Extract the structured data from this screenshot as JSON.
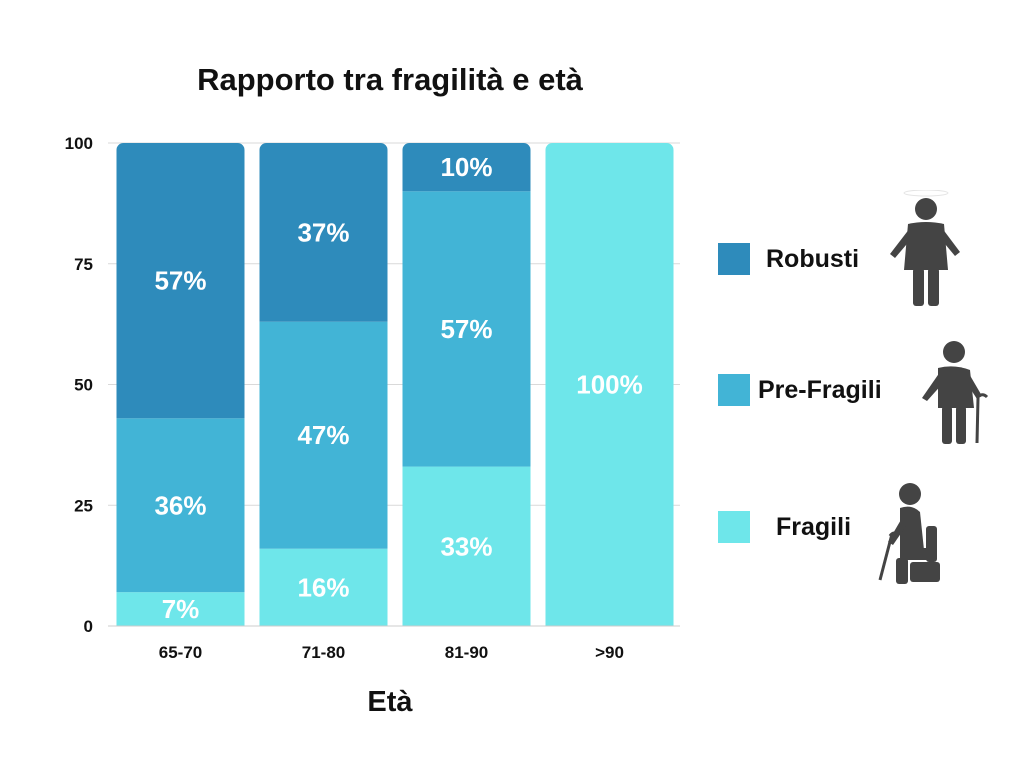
{
  "chart_data": {
    "type": "bar",
    "stacked": true,
    "title": "Rapporto tra fragilità e età",
    "xlabel": "Età",
    "ylabel": "",
    "categories": [
      "65-70",
      "71-80",
      "81-90",
      ">90"
    ],
    "ylim": [
      0,
      100
    ],
    "yticks": [
      "0",
      "25",
      "50",
      "75",
      "100"
    ],
    "grid": true,
    "legend_position": "right",
    "series": [
      {
        "name": "Fragili",
        "color": "#6ee6ea",
        "values": [
          7,
          16,
          33,
          100
        ],
        "labels": [
          "7%",
          "16%",
          "33%",
          "100%"
        ]
      },
      {
        "name": "Pre-Fragili",
        "color": "#42b4d6",
        "values": [
          36,
          47,
          57,
          0
        ],
        "labels": [
          "36%",
          "47%",
          "57%",
          ""
        ]
      },
      {
        "name": "Robusti",
        "color": "#2e8bbb",
        "values": [
          57,
          37,
          10,
          0
        ],
        "labels": [
          "57%",
          "37%",
          "10%",
          ""
        ]
      }
    ],
    "legend": [
      {
        "label": "Robusti",
        "color": "#2e8bbb",
        "icon": "standing-person-icon"
      },
      {
        "label": "Pre-Fragili",
        "color": "#42b4d6",
        "icon": "person-with-cane-icon"
      },
      {
        "label": "Fragili",
        "color": "#6ee6ea",
        "icon": "seated-person-with-cane-icon"
      }
    ]
  }
}
